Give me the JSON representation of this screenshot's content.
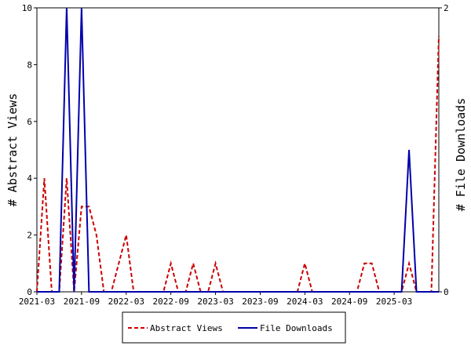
{
  "chart_data": {
    "type": "line",
    "x": [
      "2021-03",
      "2021-04",
      "2021-05",
      "2021-06",
      "2021-07",
      "2021-08",
      "2021-09",
      "2021-10",
      "2021-11",
      "2021-12",
      "2022-01",
      "2022-02",
      "2022-03",
      "2022-04",
      "2022-05",
      "2022-06",
      "2022-07",
      "2022-08",
      "2022-09",
      "2022-10",
      "2022-11",
      "2022-12",
      "2023-01",
      "2023-02",
      "2023-03",
      "2023-04",
      "2023-05",
      "2023-06",
      "2023-07",
      "2023-08",
      "2023-09",
      "2023-10",
      "2023-11",
      "2023-12",
      "2024-01",
      "2024-02",
      "2024-03",
      "2024-04",
      "2024-05",
      "2024-06",
      "2024-07",
      "2024-08",
      "2024-09",
      "2024-10",
      "2024-11",
      "2024-12",
      "2025-01",
      "2025-02",
      "2025-03",
      "2025-04",
      "2025-05",
      "2025-06",
      "2025-07",
      "2025-08",
      "2025-09"
    ],
    "series": [
      {
        "name": "Abstract Views",
        "axis": "left",
        "color": "#cc0000",
        "style": "dashed",
        "values": [
          0,
          4,
          0,
          0,
          4,
          0,
          3,
          3,
          2,
          0,
          0,
          1,
          2,
          0,
          0,
          0,
          0,
          0,
          1,
          0,
          0,
          1,
          0,
          0,
          1,
          0,
          0,
          0,
          0,
          0,
          0,
          0,
          0,
          0,
          0,
          0,
          1,
          0,
          0,
          0,
          0,
          0,
          0,
          0,
          1,
          1,
          0,
          0,
          0,
          0,
          1,
          0,
          0,
          0,
          9
        ]
      },
      {
        "name": "File Downloads",
        "axis": "right",
        "color": "#0000aa",
        "style": "solid",
        "values": [
          0,
          0,
          0,
          0,
          2,
          0,
          2,
          0,
          0,
          0,
          0,
          0,
          0,
          0,
          0,
          0,
          0,
          0,
          0,
          0,
          0,
          0,
          0,
          0,
          0,
          0,
          0,
          0,
          0,
          0,
          0,
          0,
          0,
          0,
          0,
          0,
          0,
          0,
          0,
          0,
          0,
          0,
          0,
          0,
          0,
          0,
          0,
          0,
          0,
          0,
          1,
          0,
          0,
          0,
          0
        ]
      }
    ],
    "x_ticks": [
      "2021-03",
      "2021-09",
      "2022-03",
      "2022-09",
      "2023-03",
      "2023-09",
      "2024-03",
      "2024-09",
      "2025-03"
    ],
    "ylabel": "# Abstract Views",
    "y2label": "# File Downloads",
    "ylim": [
      0,
      10
    ],
    "y2lim": [
      0,
      2
    ],
    "y_ticks": [
      0,
      2,
      4,
      6,
      8,
      10
    ],
    "y2_ticks": [
      0,
      2
    ],
    "grid": false,
    "legend_position": "bottom-center"
  }
}
